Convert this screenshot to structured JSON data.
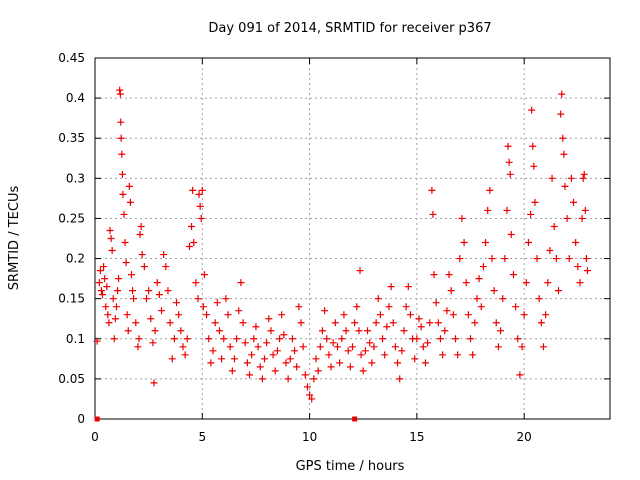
{
  "chart_data": {
    "type": "scatter",
    "title": "Day 091 of 2014, SRMTID for receiver p367",
    "xlabel": "GPS time / hours",
    "ylabel": "SRMTID / TECUs",
    "xlim": [
      0,
      24
    ],
    "ylim": [
      0,
      0.45
    ],
    "grid": true,
    "x_ticks": [
      0,
      5,
      10,
      15,
      20
    ],
    "x_tick_labels": [
      "0",
      "5",
      "10",
      "15",
      "20"
    ],
    "y_ticks": [
      0,
      0.05,
      0.1,
      0.15,
      0.2,
      0.25,
      0.3,
      0.35,
      0.4,
      0.45
    ],
    "y_tick_labels": [
      "0",
      "0.05",
      "0.1",
      "0.15",
      "0.2",
      "0.25",
      "0.3",
      "0.35",
      "0.4",
      "0.45"
    ],
    "marker": "+",
    "color": "#ee0000",
    "zero_markers_x": [
      0.1,
      12.1
    ],
    "series": [
      {
        "name": "SRMTID",
        "points": [
          [
            0.1,
            0.097
          ],
          [
            0.2,
            0.17
          ],
          [
            0.25,
            0.185
          ],
          [
            0.3,
            0.16
          ],
          [
            0.35,
            0.155
          ],
          [
            0.4,
            0.19
          ],
          [
            0.45,
            0.175
          ],
          [
            0.5,
            0.14
          ],
          [
            0.55,
            0.165
          ],
          [
            0.6,
            0.13
          ],
          [
            0.65,
            0.12
          ],
          [
            0.7,
            0.235
          ],
          [
            0.75,
            0.225
          ],
          [
            0.8,
            0.21
          ],
          [
            0.85,
            0.15
          ],
          [
            0.9,
            0.1
          ],
          [
            0.95,
            0.125
          ],
          [
            1.0,
            0.14
          ],
          [
            1.05,
            0.16
          ],
          [
            1.1,
            0.175
          ],
          [
            1.15,
            0.41
          ],
          [
            1.18,
            0.405
          ],
          [
            1.2,
            0.37
          ],
          [
            1.22,
            0.35
          ],
          [
            1.25,
            0.33
          ],
          [
            1.28,
            0.305
          ],
          [
            1.3,
            0.28
          ],
          [
            1.35,
            0.255
          ],
          [
            1.4,
            0.22
          ],
          [
            1.45,
            0.195
          ],
          [
            1.5,
            0.13
          ],
          [
            1.55,
            0.11
          ],
          [
            1.6,
            0.29
          ],
          [
            1.65,
            0.27
          ],
          [
            1.7,
            0.18
          ],
          [
            1.75,
            0.16
          ],
          [
            1.8,
            0.15
          ],
          [
            1.9,
            0.12
          ],
          [
            2.0,
            0.09
          ],
          [
            2.05,
            0.1
          ],
          [
            2.1,
            0.23
          ],
          [
            2.15,
            0.24
          ],
          [
            2.2,
            0.205
          ],
          [
            2.3,
            0.19
          ],
          [
            2.4,
            0.15
          ],
          [
            2.5,
            0.16
          ],
          [
            2.6,
            0.125
          ],
          [
            2.7,
            0.095
          ],
          [
            2.75,
            0.045
          ],
          [
            2.8,
            0.11
          ],
          [
            2.9,
            0.17
          ],
          [
            3.0,
            0.155
          ],
          [
            3.1,
            0.135
          ],
          [
            3.2,
            0.205
          ],
          [
            3.3,
            0.19
          ],
          [
            3.4,
            0.16
          ],
          [
            3.5,
            0.12
          ],
          [
            3.6,
            0.075
          ],
          [
            3.7,
            0.1
          ],
          [
            3.8,
            0.145
          ],
          [
            3.9,
            0.13
          ],
          [
            4.0,
            0.11
          ],
          [
            4.1,
            0.09
          ],
          [
            4.2,
            0.08
          ],
          [
            4.3,
            0.1
          ],
          [
            4.4,
            0.215
          ],
          [
            4.5,
            0.24
          ],
          [
            4.55,
            0.285
          ],
          [
            4.6,
            0.22
          ],
          [
            4.7,
            0.17
          ],
          [
            4.8,
            0.15
          ],
          [
            4.85,
            0.28
          ],
          [
            4.9,
            0.265
          ],
          [
            4.95,
            0.25
          ],
          [
            5.0,
            0.285
          ],
          [
            5.05,
            0.14
          ],
          [
            5.1,
            0.18
          ],
          [
            5.2,
            0.13
          ],
          [
            5.3,
            0.1
          ],
          [
            5.4,
            0.07
          ],
          [
            5.5,
            0.085
          ],
          [
            5.6,
            0.12
          ],
          [
            5.7,
            0.145
          ],
          [
            5.8,
            0.11
          ],
          [
            5.9,
            0.075
          ],
          [
            6.0,
            0.1
          ],
          [
            6.1,
            0.15
          ],
          [
            6.2,
            0.13
          ],
          [
            6.3,
            0.09
          ],
          [
            6.4,
            0.06
          ],
          [
            6.5,
            0.075
          ],
          [
            6.6,
            0.1
          ],
          [
            6.7,
            0.135
          ],
          [
            6.8,
            0.17
          ],
          [
            6.9,
            0.12
          ],
          [
            7.0,
            0.095
          ],
          [
            7.1,
            0.07
          ],
          [
            7.2,
            0.055
          ],
          [
            7.3,
            0.08
          ],
          [
            7.4,
            0.1
          ],
          [
            7.5,
            0.115
          ],
          [
            7.6,
            0.09
          ],
          [
            7.7,
            0.065
          ],
          [
            7.8,
            0.05
          ],
          [
            7.9,
            0.075
          ],
          [
            8.0,
            0.095
          ],
          [
            8.1,
            0.125
          ],
          [
            8.2,
            0.11
          ],
          [
            8.3,
            0.08
          ],
          [
            8.4,
            0.06
          ],
          [
            8.5,
            0.085
          ],
          [
            8.6,
            0.1
          ],
          [
            8.7,
            0.13
          ],
          [
            8.8,
            0.105
          ],
          [
            8.9,
            0.07
          ],
          [
            9.0,
            0.05
          ],
          [
            9.1,
            0.075
          ],
          [
            9.2,
            0.1
          ],
          [
            9.3,
            0.085
          ],
          [
            9.4,
            0.065
          ],
          [
            9.5,
            0.14
          ],
          [
            9.6,
            0.12
          ],
          [
            9.7,
            0.09
          ],
          [
            9.8,
            0.055
          ],
          [
            9.9,
            0.04
          ],
          [
            10.0,
            0.03
          ],
          [
            10.1,
            0.025
          ],
          [
            10.2,
            0.05
          ],
          [
            10.3,
            0.075
          ],
          [
            10.4,
            0.06
          ],
          [
            10.5,
            0.09
          ],
          [
            10.6,
            0.11
          ],
          [
            10.7,
            0.135
          ],
          [
            10.8,
            0.1
          ],
          [
            10.9,
            0.08
          ],
          [
            11.0,
            0.065
          ],
          [
            11.1,
            0.095
          ],
          [
            11.2,
            0.12
          ],
          [
            11.3,
            0.09
          ],
          [
            11.4,
            0.07
          ],
          [
            11.5,
            0.1
          ],
          [
            11.6,
            0.13
          ],
          [
            11.7,
            0.11
          ],
          [
            11.8,
            0.085
          ],
          [
            11.9,
            0.065
          ],
          [
            12.0,
            0.09
          ],
          [
            12.1,
            0.12
          ],
          [
            12.2,
            0.14
          ],
          [
            12.3,
            0.11
          ],
          [
            12.35,
            0.185
          ],
          [
            12.4,
            0.08
          ],
          [
            12.5,
            0.06
          ],
          [
            12.6,
            0.085
          ],
          [
            12.7,
            0.11
          ],
          [
            12.8,
            0.095
          ],
          [
            12.9,
            0.07
          ],
          [
            13.0,
            0.09
          ],
          [
            13.1,
            0.12
          ],
          [
            13.2,
            0.15
          ],
          [
            13.3,
            0.13
          ],
          [
            13.4,
            0.1
          ],
          [
            13.5,
            0.08
          ],
          [
            13.6,
            0.115
          ],
          [
            13.7,
            0.14
          ],
          [
            13.8,
            0.165
          ],
          [
            13.9,
            0.12
          ],
          [
            14.0,
            0.09
          ],
          [
            14.1,
            0.07
          ],
          [
            14.2,
            0.05
          ],
          [
            14.3,
            0.085
          ],
          [
            14.4,
            0.11
          ],
          [
            14.5,
            0.14
          ],
          [
            14.6,
            0.165
          ],
          [
            14.7,
            0.13
          ],
          [
            14.8,
            0.1
          ],
          [
            14.9,
            0.075
          ],
          [
            15.0,
            0.1
          ],
          [
            15.1,
            0.125
          ],
          [
            15.2,
            0.115
          ],
          [
            15.3,
            0.09
          ],
          [
            15.4,
            0.07
          ],
          [
            15.5,
            0.095
          ],
          [
            15.6,
            0.12
          ],
          [
            15.7,
            0.285
          ],
          [
            15.75,
            0.255
          ],
          [
            15.8,
            0.18
          ],
          [
            15.9,
            0.145
          ],
          [
            16.0,
            0.12
          ],
          [
            16.1,
            0.1
          ],
          [
            16.2,
            0.08
          ],
          [
            16.3,
            0.11
          ],
          [
            16.4,
            0.135
          ],
          [
            16.5,
            0.18
          ],
          [
            16.6,
            0.16
          ],
          [
            16.7,
            0.13
          ],
          [
            16.8,
            0.1
          ],
          [
            16.9,
            0.08
          ],
          [
            17.0,
            0.2
          ],
          [
            17.1,
            0.25
          ],
          [
            17.2,
            0.22
          ],
          [
            17.3,
            0.17
          ],
          [
            17.4,
            0.13
          ],
          [
            17.5,
            0.1
          ],
          [
            17.6,
            0.08
          ],
          [
            17.7,
            0.12
          ],
          [
            17.8,
            0.15
          ],
          [
            17.9,
            0.175
          ],
          [
            18.0,
            0.14
          ],
          [
            18.1,
            0.19
          ],
          [
            18.2,
            0.22
          ],
          [
            18.3,
            0.26
          ],
          [
            18.4,
            0.285
          ],
          [
            18.5,
            0.2
          ],
          [
            18.6,
            0.16
          ],
          [
            18.7,
            0.12
          ],
          [
            18.8,
            0.09
          ],
          [
            18.9,
            0.11
          ],
          [
            19.0,
            0.15
          ],
          [
            19.1,
            0.2
          ],
          [
            19.2,
            0.26
          ],
          [
            19.25,
            0.34
          ],
          [
            19.3,
            0.32
          ],
          [
            19.35,
            0.305
          ],
          [
            19.4,
            0.23
          ],
          [
            19.5,
            0.18
          ],
          [
            19.6,
            0.14
          ],
          [
            19.7,
            0.1
          ],
          [
            19.8,
            0.055
          ],
          [
            19.9,
            0.09
          ],
          [
            20.0,
            0.13
          ],
          [
            20.1,
            0.17
          ],
          [
            20.2,
            0.22
          ],
          [
            20.3,
            0.255
          ],
          [
            20.35,
            0.385
          ],
          [
            20.4,
            0.34
          ],
          [
            20.45,
            0.315
          ],
          [
            20.5,
            0.27
          ],
          [
            20.6,
            0.2
          ],
          [
            20.7,
            0.15
          ],
          [
            20.8,
            0.12
          ],
          [
            20.9,
            0.09
          ],
          [
            21.0,
            0.13
          ],
          [
            21.1,
            0.17
          ],
          [
            21.2,
            0.21
          ],
          [
            21.3,
            0.3
          ],
          [
            21.4,
            0.24
          ],
          [
            21.5,
            0.2
          ],
          [
            21.6,
            0.16
          ],
          [
            21.7,
            0.38
          ],
          [
            21.75,
            0.405
          ],
          [
            21.8,
            0.35
          ],
          [
            21.85,
            0.33
          ],
          [
            21.9,
            0.29
          ],
          [
            22.0,
            0.25
          ],
          [
            22.1,
            0.2
          ],
          [
            22.2,
            0.3
          ],
          [
            22.3,
            0.27
          ],
          [
            22.4,
            0.22
          ],
          [
            22.5,
            0.19
          ],
          [
            22.6,
            0.17
          ],
          [
            22.7,
            0.25
          ],
          [
            22.75,
            0.3
          ],
          [
            22.8,
            0.305
          ],
          [
            22.85,
            0.26
          ],
          [
            22.9,
            0.2
          ],
          [
            22.95,
            0.185
          ]
        ]
      }
    ]
  }
}
